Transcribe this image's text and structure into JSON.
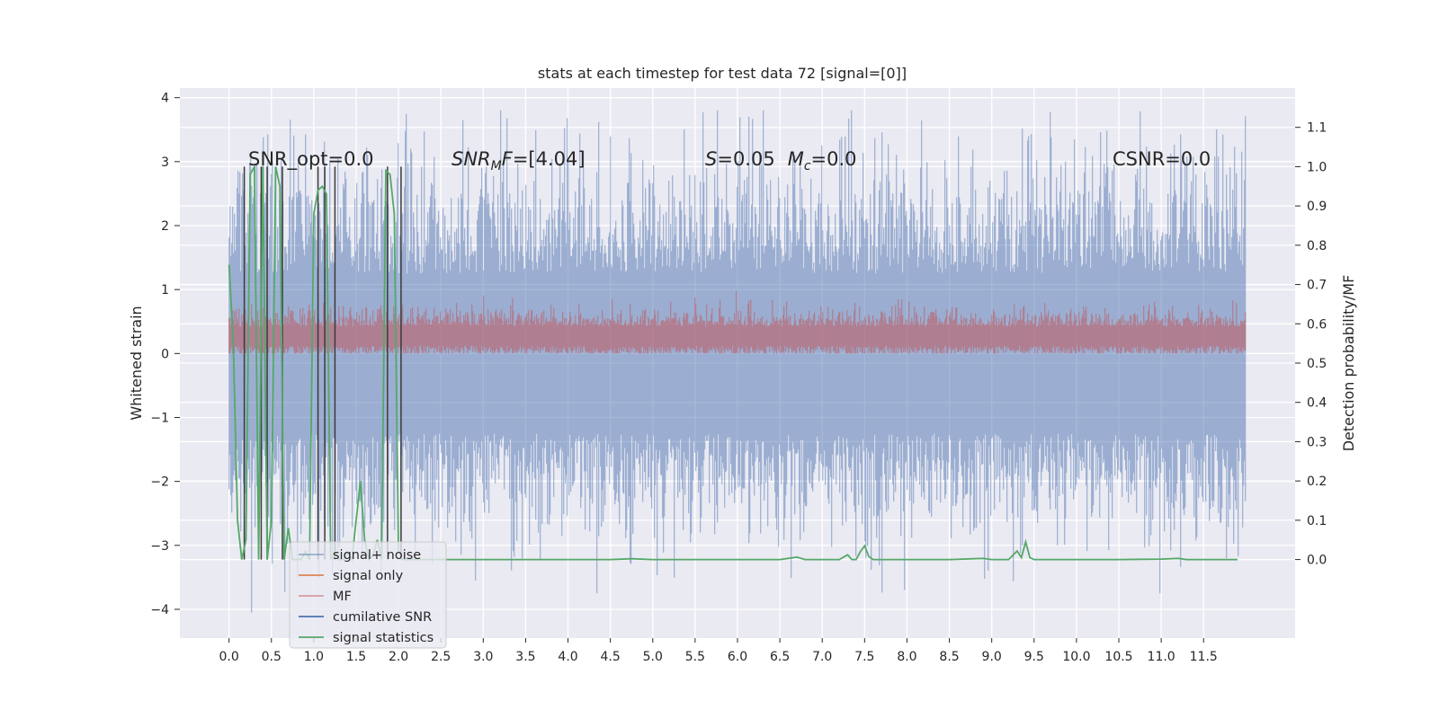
{
  "chart_data": {
    "type": "line",
    "title": "stats at each timestep for test data 72 [signal=[0]]",
    "xlabel": "",
    "ylabel": "Whitened strain",
    "ylabel_right": "Detection probability/MF",
    "xlim": [
      -0.58,
      12.58
    ],
    "ylim": [
      -4.45,
      4.15
    ],
    "ylim_right": [
      -0.2,
      1.2
    ],
    "x_ticks": [
      0.0,
      0.5,
      1.0,
      1.5,
      2.0,
      2.5,
      3.0,
      3.5,
      4.0,
      4.5,
      5.0,
      5.5,
      6.0,
      6.5,
      7.0,
      7.5,
      8.0,
      8.5,
      9.0,
      9.5,
      10.0,
      10.5,
      11.0,
      11.5
    ],
    "x_tick_labels": [
      "0.0",
      "0.5",
      "1.0",
      "1.5",
      "2.0",
      "2.5",
      "3.0",
      "3.5",
      "4.0",
      "4.5",
      "5.0",
      "5.5",
      "6.0",
      "6.5",
      "7.0",
      "7.5",
      "8.0",
      "8.5",
      "9.0",
      "9.5",
      "10.0",
      "10.5",
      "11.0",
      "11.5"
    ],
    "y_ticks": [
      -4,
      -3,
      -2,
      -1,
      0,
      1,
      2,
      3,
      4
    ],
    "y_tick_labels": [
      "−4",
      "−3",
      "−2",
      "−1",
      "0",
      "1",
      "2",
      "3",
      "4"
    ],
    "y_right_ticks": [
      0.0,
      0.1,
      0.2,
      0.3,
      0.4,
      0.5,
      0.6,
      0.7,
      0.8,
      0.9,
      1.0,
      1.1
    ],
    "y_right_tick_labels": [
      "0.0",
      "0.1",
      "0.2",
      "0.3",
      "0.4",
      "0.5",
      "0.6",
      "0.7",
      "0.8",
      "0.9",
      "1.0",
      "1.1"
    ],
    "grid": true,
    "legend_position": "lower-left",
    "signal_noise_range": {
      "x": [
        0.0,
        12.0
      ],
      "y_min_approx": -3.3,
      "y_max_approx": 3.8
    },
    "mf_range": {
      "x": [
        0.0,
        12.0
      ],
      "y_min_approx": 0.0,
      "y_max_approx": 0.98
    },
    "series": [
      {
        "name": "signal+ noise",
        "color": "#4c72b0",
        "alpha": 0.5
      },
      {
        "name": "signal only",
        "color": "#dd8452"
      },
      {
        "name": "MF",
        "color": "#c44e52",
        "alpha": 0.5
      },
      {
        "name": "cumilative SNR",
        "color": "#4c72b0"
      },
      {
        "name": "signal statistics",
        "color": "#55a868",
        "axis": "right",
        "x": [
          0.0,
          0.05,
          0.1,
          0.15,
          0.2,
          0.25,
          0.3,
          0.35,
          0.4,
          0.45,
          0.5,
          0.55,
          0.6,
          0.65,
          0.7,
          0.75,
          0.8,
          0.85,
          0.9,
          0.95,
          1.0,
          1.05,
          1.1,
          1.15,
          1.2,
          1.25,
          1.3,
          1.35,
          1.4,
          1.45,
          1.5,
          1.55,
          1.6,
          1.65,
          1.7,
          1.75,
          1.8,
          1.85,
          1.9,
          1.95,
          2.0,
          2.05,
          2.1,
          2.15,
          2.2,
          2.3,
          3.0,
          4.0,
          4.5,
          4.75,
          5.0,
          6.0,
          6.5,
          6.6,
          6.7,
          6.8,
          7.0,
          7.2,
          7.3,
          7.35,
          7.4,
          7.45,
          7.5,
          7.55,
          7.6,
          7.8,
          8.0,
          8.5,
          8.9,
          9.0,
          9.2,
          9.3,
          9.35,
          9.4,
          9.45,
          9.5,
          9.7,
          10.0,
          10.5,
          11.0,
          11.2,
          11.3,
          11.5,
          11.9
        ],
        "y": [
          0.75,
          0.55,
          0.1,
          0.0,
          0.05,
          0.98,
          1.0,
          0.0,
          1.0,
          0.0,
          0.1,
          1.0,
          0.95,
          0.0,
          0.08,
          0.0,
          0.0,
          0.0,
          0.02,
          0.0,
          0.88,
          0.94,
          0.95,
          0.93,
          0.0,
          0.02,
          0.0,
          0.0,
          0.02,
          0.0,
          0.1,
          0.2,
          0.05,
          0.0,
          0.01,
          0.05,
          0.0,
          0.99,
          0.98,
          0.88,
          0.02,
          0.0,
          0.0,
          0.0,
          0.0,
          0.0,
          0.0,
          0.0,
          0.0,
          0.002,
          0.0,
          0.0,
          0.0,
          0.003,
          0.006,
          0.0,
          0.0,
          0.0,
          0.012,
          0.0,
          0.0,
          0.02,
          0.035,
          0.008,
          0.0,
          0.0,
          0.0,
          0.0,
          0.003,
          0.0,
          0.0,
          0.022,
          0.005,
          0.045,
          0.005,
          0.0,
          0.0,
          0.0,
          0.0,
          0.001,
          0.003,
          0.0,
          0.0,
          0.0
        ]
      }
    ],
    "vertical_lines": [
      0.18,
      0.38,
      0.45,
      0.63,
      1.05,
      1.13,
      1.25,
      1.87,
      2.03
    ],
    "annotations": [
      {
        "text": "SNR_opt=0.0"
      },
      {
        "text": "SNR_MF=[4.04]"
      },
      {
        "text": "S=0.05   M_c=0.0"
      },
      {
        "text": "CSNR=0.0"
      }
    ]
  }
}
